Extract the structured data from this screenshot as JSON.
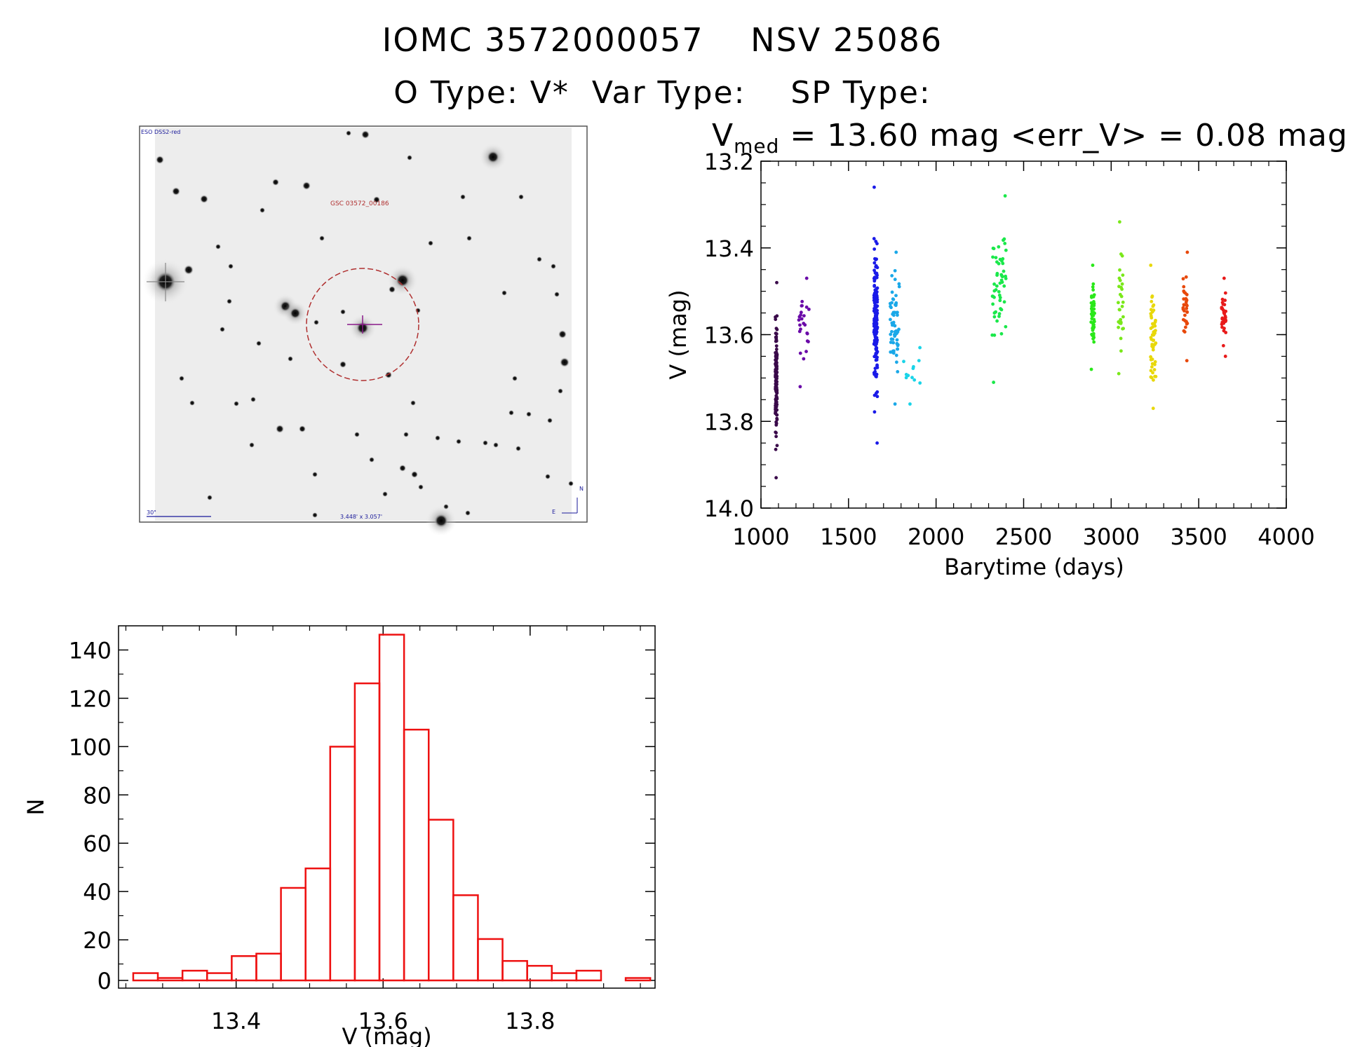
{
  "header": {
    "title_line1": "IOMC 3572000057    NSV 25086",
    "title_line2": "O Type: V*  Var Type:    SP Type:",
    "stats_prefix": "V",
    "stats_sub": "med",
    "stats_rest": " = 13.60 mag <err_V> = 0.08 mag"
  },
  "finder": {
    "survey_label": "ESO DSS2-red",
    "target_label": "GSC 03572_00186",
    "scale_label": "30\"",
    "fov_label": "3.448' x 3.057'",
    "north_label": "N",
    "east_label": "E",
    "colors": {
      "circle": "#b03030",
      "cross": "#8a1a8a",
      "labels": "#1a1a9a"
    }
  },
  "chart_data": [
    {
      "type": "scatter",
      "xlabel": "Barytime (days)",
      "ylabel": "V (mag)",
      "xlim": [
        1000,
        4000
      ],
      "ylim": [
        14.0,
        13.2
      ],
      "y_inverted": true,
      "xticks": [
        1000,
        1500,
        2000,
        2500,
        3000,
        3500,
        4000
      ],
      "yticks": [
        13.2,
        13.4,
        13.6,
        13.8,
        14.0
      ],
      "ytick_labels": [
        "13.2",
        "13.4",
        "13.6",
        "13.8",
        "14.0"
      ],
      "grid": false,
      "series": [
        {
          "color": "#3a0a4a",
          "x_range": [
            1082,
            1092
          ],
          "count": 150,
          "y_range": [
            13.48,
            13.93
          ]
        },
        {
          "color": "#6a0aa8",
          "x_range": [
            1215,
            1275
          ],
          "count": 25,
          "y_range": [
            13.47,
            13.72
          ]
        },
        {
          "color": "#1a1ae8",
          "x_range": [
            1645,
            1665
          ],
          "count": 170,
          "y_range": [
            13.26,
            13.85
          ]
        },
        {
          "color": "#1aa8e8",
          "x_range": [
            1735,
            1790
          ],
          "count": 60,
          "y_range": [
            13.41,
            13.76
          ]
        },
        {
          "color": "#1ad4e8",
          "x_range": [
            1800,
            1920
          ],
          "count": 12,
          "y_range": [
            13.63,
            13.76
          ]
        },
        {
          "color": "#1ae84a",
          "x_range": [
            2320,
            2400
          ],
          "count": 55,
          "y_range": [
            13.28,
            13.71
          ]
        },
        {
          "color": "#2ae81a",
          "x_range": [
            2885,
            2905
          ],
          "count": 50,
          "y_range": [
            13.44,
            13.68
          ]
        },
        {
          "color": "#7ae81a",
          "x_range": [
            3040,
            3070
          ],
          "count": 30,
          "y_range": [
            13.34,
            13.69
          ]
        },
        {
          "color": "#e8d80a",
          "x_range": [
            3225,
            3255
          ],
          "count": 55,
          "y_range": [
            13.44,
            13.77
          ]
        },
        {
          "color": "#e8480a",
          "x_range": [
            3410,
            3435
          ],
          "count": 35,
          "y_range": [
            13.41,
            13.66
          ]
        },
        {
          "color": "#e81a1a",
          "x_range": [
            3630,
            3655
          ],
          "count": 35,
          "y_range": [
            13.47,
            13.65
          ]
        }
      ]
    },
    {
      "type": "bar",
      "style": "histogram-step",
      "xlabel": "V (mag)",
      "ylabel": "N",
      "xlim": [
        13.24,
        13.97
      ],
      "ylim": [
        0,
        150
      ],
      "xticks": [
        13.4,
        13.6,
        13.8
      ],
      "xtick_labels": [
        "13.4",
        "13.6",
        "13.8"
      ],
      "yticks": [
        0,
        20,
        40,
        60,
        80,
        100,
        120,
        140
      ],
      "ytick_labels": [
        "0",
        "20",
        "40",
        "60",
        "80",
        "100",
        "120",
        "140"
      ],
      "bin_width": 0.0335,
      "bin_edges_start": 13.26,
      "values": [
        3,
        1,
        4,
        3,
        10,
        11,
        38,
        46,
        96,
        122,
        142,
        103,
        66,
        35,
        17,
        8,
        6,
        3,
        4,
        0,
        1
      ],
      "color": "#ee1111",
      "grid": false
    }
  ]
}
